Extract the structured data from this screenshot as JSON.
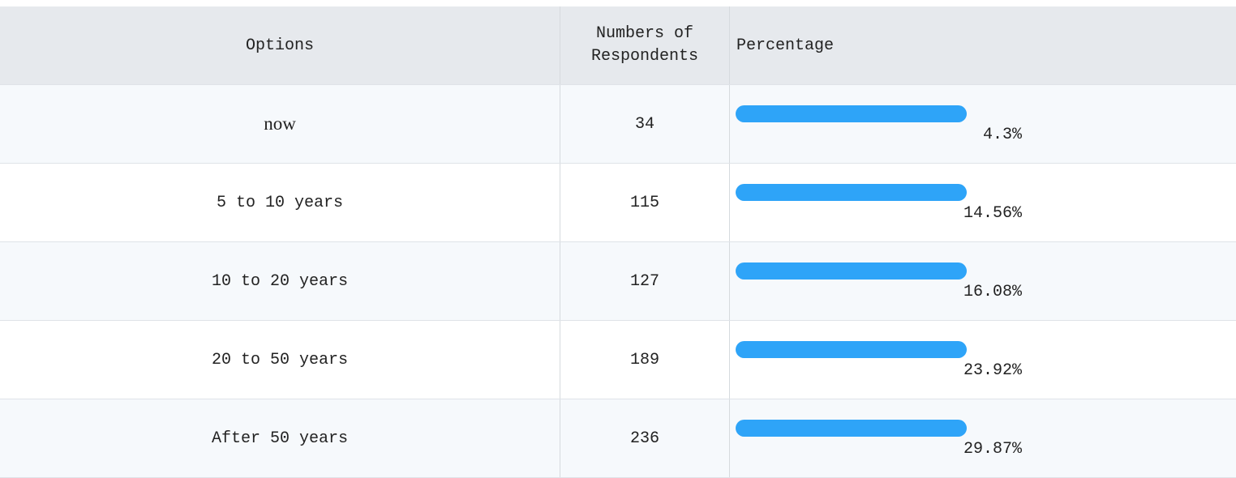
{
  "table": {
    "header": [
      "Options",
      "Numbers of Respondents",
      "Percentage"
    ],
    "rows": [
      [
        "now",
        34,
        "4.3%"
      ],
      [
        "5 to 10 years",
        115,
        "14.56%"
      ],
      [
        "10 to 20 years",
        127,
        "16.08%"
      ],
      [
        "20 to 50 years",
        189,
        "23.92%"
      ],
      [
        "After 50 years",
        236,
        "29.87%"
      ]
    ]
  }
}
